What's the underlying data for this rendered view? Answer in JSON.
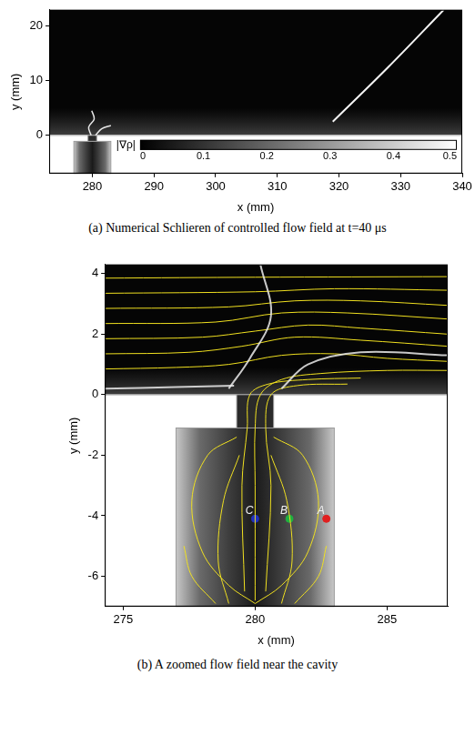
{
  "chart_data": [
    {
      "type": "scatter",
      "title": "(a) Numerical Schlieren of controlled flow field at t=40 μs",
      "x_label": "x (mm)",
      "y_label": "y (mm)",
      "xlim": [
        273,
        340
      ],
      "xticks": [
        280,
        290,
        300,
        310,
        320,
        330,
        340
      ],
      "ylim": [
        -7,
        23
      ],
      "yticks": [
        0,
        10,
        20
      ],
      "grid": false,
      "chamber_x": [
        277,
        283
      ],
      "chamber_y": [
        -7,
        -1.1
      ],
      "throat_x": [
        279.3,
        280.7
      ],
      "shock_lines": [
        [
          [
            319,
            2.5
          ],
          [
            328,
            12.5
          ],
          [
            337,
            23
          ]
        ]
      ],
      "jet_lines": [
        [
          [
            279.8,
            0
          ],
          [
            279.4,
            1.5
          ],
          [
            280.3,
            3
          ],
          [
            279.9,
            4.5
          ]
        ],
        [
          [
            280.5,
            0
          ],
          [
            281.5,
            1.2
          ],
          [
            283,
            1.8
          ]
        ]
      ],
      "colorbar": {
        "label": "|∇ρ|",
        "range": [
          0,
          0.5
        ],
        "ticks": [
          0,
          0.1,
          0.2,
          0.3,
          0.4,
          0.5
        ]
      }
    },
    {
      "type": "scatter",
      "title": "(b) A zoomed flow field near the cavity",
      "x_label": "x (mm)",
      "y_label": "y (mm)",
      "xlim": [
        274.3,
        287.3
      ],
      "xticks": [
        275,
        280,
        285
      ],
      "ylim": [
        -7,
        4.3
      ],
      "yticks": [
        -6,
        -4,
        -2,
        0,
        2,
        4
      ],
      "grid": false,
      "chamber_x": [
        277,
        283
      ],
      "chamber_y": [
        -7,
        -1.1
      ],
      "throat_x": [
        279.3,
        280.7
      ],
      "streamlines": [
        [
          [
            274.3,
            3.85
          ],
          [
            280,
            3.88
          ],
          [
            287.3,
            3.9
          ]
        ],
        [
          [
            274.3,
            3.35
          ],
          [
            280,
            3.4
          ],
          [
            283,
            3.5
          ],
          [
            287.3,
            3.45
          ]
        ],
        [
          [
            274.3,
            2.85
          ],
          [
            279,
            2.9
          ],
          [
            281.5,
            3.1
          ],
          [
            284,
            3.1
          ],
          [
            287.3,
            2.95
          ]
        ],
        [
          [
            274.3,
            2.35
          ],
          [
            278.5,
            2.4
          ],
          [
            281,
            2.7
          ],
          [
            283.5,
            2.7
          ],
          [
            287.3,
            2.5
          ]
        ],
        [
          [
            274.3,
            1.85
          ],
          [
            278,
            1.9
          ],
          [
            280,
            2.1
          ],
          [
            282,
            2.3
          ],
          [
            284,
            2.2
          ],
          [
            287.3,
            2.0
          ]
        ],
        [
          [
            274.3,
            1.35
          ],
          [
            277.5,
            1.4
          ],
          [
            279.5,
            1.6
          ],
          [
            281.5,
            1.9
          ],
          [
            284,
            1.8
          ],
          [
            287.3,
            1.6
          ]
        ],
        [
          [
            274.3,
            0.85
          ],
          [
            277,
            0.9
          ],
          [
            279,
            1.0
          ],
          [
            281,
            1.3
          ],
          [
            283,
            1.35
          ],
          [
            285,
            1.2
          ],
          [
            287.3,
            1.1
          ]
        ],
        [
          [
            280,
            -6.8
          ],
          [
            280,
            -3
          ],
          [
            280,
            -1.1
          ],
          [
            280.2,
            0
          ],
          [
            281,
            0.5
          ],
          [
            282.5,
            0.7
          ],
          [
            285,
            0.8
          ],
          [
            287.3,
            0.8
          ]
        ],
        [
          [
            279.6,
            -6.5
          ],
          [
            279.5,
            -3
          ],
          [
            279.7,
            -1.1
          ],
          [
            279.8,
            0
          ],
          [
            280.5,
            0.35
          ],
          [
            282,
            0.5
          ],
          [
            284,
            0.55
          ]
        ],
        [
          [
            280.4,
            -6.5
          ],
          [
            280.6,
            -3
          ],
          [
            280.4,
            -1.1
          ],
          [
            280.6,
            0
          ],
          [
            281.6,
            0.3
          ],
          [
            283.5,
            0.35
          ]
        ],
        [
          [
            280,
            -6.9
          ],
          [
            279,
            -6.3
          ],
          [
            278,
            -5.2
          ],
          [
            277.6,
            -3.5
          ],
          [
            278.2,
            -2
          ],
          [
            279.3,
            -1.4
          ]
        ],
        [
          [
            280,
            -6.9
          ],
          [
            281,
            -6.3
          ],
          [
            282,
            -5.2
          ],
          [
            282.4,
            -3.5
          ],
          [
            281.8,
            -2
          ],
          [
            280.7,
            -1.4
          ]
        ],
        [
          [
            279,
            -6.9
          ],
          [
            278.6,
            -5.5
          ],
          [
            278.8,
            -3.5
          ],
          [
            279.4,
            -2
          ]
        ],
        [
          [
            281,
            -6.9
          ],
          [
            281.4,
            -5.5
          ],
          [
            281.2,
            -3.5
          ],
          [
            280.6,
            -2
          ]
        ],
        [
          [
            278.5,
            -6.9
          ],
          [
            277.6,
            -6
          ],
          [
            277.3,
            -5
          ]
        ],
        [
          [
            281.5,
            -6.9
          ],
          [
            282.4,
            -6
          ],
          [
            282.7,
            -5
          ]
        ]
      ],
      "gradient_lines": [
        [
          [
            279,
            0.2
          ],
          [
            279.8,
            1.2
          ],
          [
            280.6,
            2.6
          ],
          [
            280.2,
            4.3
          ]
        ],
        [
          [
            281,
            0.2
          ],
          [
            282,
            1
          ],
          [
            284,
            1.4
          ],
          [
            287.3,
            1.3
          ]
        ],
        [
          [
            274.3,
            0.2
          ],
          [
            277,
            0.25
          ],
          [
            279.2,
            0.3
          ]
        ]
      ],
      "probes": [
        {
          "label": "A",
          "x": 282.7,
          "y": -4.1,
          "color": "#e02020"
        },
        {
          "label": "B",
          "x": 281.3,
          "y": -4.1,
          "color": "#20b040"
        },
        {
          "label": "C",
          "x": 280.0,
          "y": -4.1,
          "color": "#2030c0"
        }
      ]
    }
  ]
}
